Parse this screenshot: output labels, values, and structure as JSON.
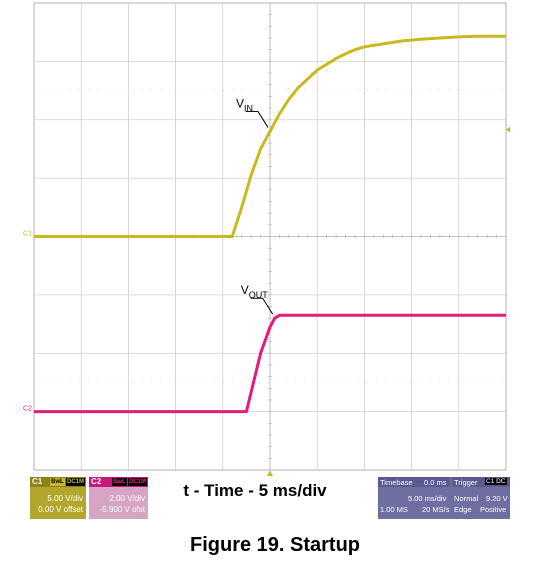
{
  "chart_data": {
    "type": "line",
    "grid": true,
    "divisions": {
      "x": 10,
      "y": 8
    },
    "x_range": [
      -25,
      25
    ],
    "y_range_div": [
      -4,
      4
    ],
    "xlabel": "t - Time - 5 ms/div",
    "title": "Figure 19. Startup",
    "series": [
      {
        "name": "V_IN",
        "channel_marker": "C1",
        "color": "#c8b91e",
        "level_div": 0,
        "x": [
          -25,
          -5,
          -4,
          -3,
          -2,
          -1,
          0,
          1,
          2,
          3,
          4,
          5,
          6,
          7,
          8,
          9,
          10,
          12,
          14,
          16,
          18,
          20,
          22,
          25
        ],
        "y": [
          0,
          0,
          0,
          0.5,
          1.05,
          1.5,
          1.8,
          2.1,
          2.35,
          2.55,
          2.7,
          2.85,
          2.95,
          3.05,
          3.13,
          3.2,
          3.25,
          3.3,
          3.35,
          3.38,
          3.4,
          3.42,
          3.43,
          3.43
        ]
      },
      {
        "name": "V_OUT",
        "channel_marker": "C2",
        "color": "#e6197d",
        "level_div": -3,
        "x": [
          -25,
          -3,
          -2.5,
          -1,
          0,
          0.5,
          1,
          2,
          25
        ],
        "y": [
          0,
          0,
          0,
          1.0,
          1.45,
          1.6,
          1.65,
          1.65,
          1.65
        ]
      }
    ],
    "annotations": [
      {
        "label_main": "V",
        "label_sub": "IN",
        "at_x": 0,
        "series": "V_IN"
      },
      {
        "label_main": "V",
        "label_sub": "OUT",
        "at_x": 0.5,
        "series": "V_OUT"
      }
    ]
  },
  "channels": [
    {
      "tag": "C1",
      "badges": [
        "BwL",
        "DC1M"
      ],
      "line1": "5.00 V/div",
      "line2": "0.00 V offset",
      "bg": "#b3a62c",
      "head": "#8c8216"
    },
    {
      "tag": "C2",
      "badges": [
        "BwL",
        "DC1M"
      ],
      "line1": "2.00 V/div",
      "line2": "-5.900 V ofst",
      "bg": "#d6a5c4",
      "head": "#c9177a"
    }
  ],
  "timebase": {
    "label": "Timebase",
    "value": "0.0 ms",
    "div": "5.00 ms/div",
    "samples": "1.00 MS",
    "rate": "20 MS/s"
  },
  "trigger": {
    "label": "Trigger",
    "badge": "C1 DC",
    "mode": "Normal",
    "level": "9.20 V",
    "type": "Edge",
    "slope": "Positive"
  }
}
